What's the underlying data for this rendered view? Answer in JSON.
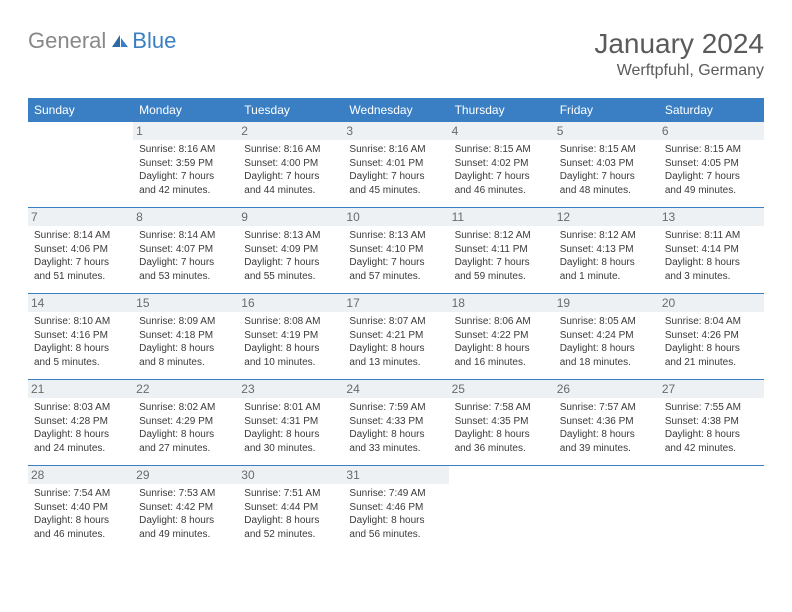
{
  "logo": {
    "text1": "General",
    "text2": "Blue"
  },
  "title": "January 2024",
  "location": "Werftpfuhl, Germany",
  "weekdays": [
    "Sunday",
    "Monday",
    "Tuesday",
    "Wednesday",
    "Thursday",
    "Friday",
    "Saturday"
  ],
  "colors": {
    "header_bg": "#3a7fc4",
    "header_text": "#ffffff",
    "border": "#3a7fc4",
    "daynum_bg": "#eef1f4",
    "text": "#3a3a3a",
    "logo_gray": "#888888",
    "logo_blue": "#3a7fc4"
  },
  "start_offset": 1,
  "days": [
    {
      "n": 1,
      "sr": "8:16 AM",
      "ss": "3:59 PM",
      "dl": "7 hours and 42 minutes."
    },
    {
      "n": 2,
      "sr": "8:16 AM",
      "ss": "4:00 PM",
      "dl": "7 hours and 44 minutes."
    },
    {
      "n": 3,
      "sr": "8:16 AM",
      "ss": "4:01 PM",
      "dl": "7 hours and 45 minutes."
    },
    {
      "n": 4,
      "sr": "8:15 AM",
      "ss": "4:02 PM",
      "dl": "7 hours and 46 minutes."
    },
    {
      "n": 5,
      "sr": "8:15 AM",
      "ss": "4:03 PM",
      "dl": "7 hours and 48 minutes."
    },
    {
      "n": 6,
      "sr": "8:15 AM",
      "ss": "4:05 PM",
      "dl": "7 hours and 49 minutes."
    },
    {
      "n": 7,
      "sr": "8:14 AM",
      "ss": "4:06 PM",
      "dl": "7 hours and 51 minutes."
    },
    {
      "n": 8,
      "sr": "8:14 AM",
      "ss": "4:07 PM",
      "dl": "7 hours and 53 minutes."
    },
    {
      "n": 9,
      "sr": "8:13 AM",
      "ss": "4:09 PM",
      "dl": "7 hours and 55 minutes."
    },
    {
      "n": 10,
      "sr": "8:13 AM",
      "ss": "4:10 PM",
      "dl": "7 hours and 57 minutes."
    },
    {
      "n": 11,
      "sr": "8:12 AM",
      "ss": "4:11 PM",
      "dl": "7 hours and 59 minutes."
    },
    {
      "n": 12,
      "sr": "8:12 AM",
      "ss": "4:13 PM",
      "dl": "8 hours and 1 minute."
    },
    {
      "n": 13,
      "sr": "8:11 AM",
      "ss": "4:14 PM",
      "dl": "8 hours and 3 minutes."
    },
    {
      "n": 14,
      "sr": "8:10 AM",
      "ss": "4:16 PM",
      "dl": "8 hours and 5 minutes."
    },
    {
      "n": 15,
      "sr": "8:09 AM",
      "ss": "4:18 PM",
      "dl": "8 hours and 8 minutes."
    },
    {
      "n": 16,
      "sr": "8:08 AM",
      "ss": "4:19 PM",
      "dl": "8 hours and 10 minutes."
    },
    {
      "n": 17,
      "sr": "8:07 AM",
      "ss": "4:21 PM",
      "dl": "8 hours and 13 minutes."
    },
    {
      "n": 18,
      "sr": "8:06 AM",
      "ss": "4:22 PM",
      "dl": "8 hours and 16 minutes."
    },
    {
      "n": 19,
      "sr": "8:05 AM",
      "ss": "4:24 PM",
      "dl": "8 hours and 18 minutes."
    },
    {
      "n": 20,
      "sr": "8:04 AM",
      "ss": "4:26 PM",
      "dl": "8 hours and 21 minutes."
    },
    {
      "n": 21,
      "sr": "8:03 AM",
      "ss": "4:28 PM",
      "dl": "8 hours and 24 minutes."
    },
    {
      "n": 22,
      "sr": "8:02 AM",
      "ss": "4:29 PM",
      "dl": "8 hours and 27 minutes."
    },
    {
      "n": 23,
      "sr": "8:01 AM",
      "ss": "4:31 PM",
      "dl": "8 hours and 30 minutes."
    },
    {
      "n": 24,
      "sr": "7:59 AM",
      "ss": "4:33 PM",
      "dl": "8 hours and 33 minutes."
    },
    {
      "n": 25,
      "sr": "7:58 AM",
      "ss": "4:35 PM",
      "dl": "8 hours and 36 minutes."
    },
    {
      "n": 26,
      "sr": "7:57 AM",
      "ss": "4:36 PM",
      "dl": "8 hours and 39 minutes."
    },
    {
      "n": 27,
      "sr": "7:55 AM",
      "ss": "4:38 PM",
      "dl": "8 hours and 42 minutes."
    },
    {
      "n": 28,
      "sr": "7:54 AM",
      "ss": "4:40 PM",
      "dl": "8 hours and 46 minutes."
    },
    {
      "n": 29,
      "sr": "7:53 AM",
      "ss": "4:42 PM",
      "dl": "8 hours and 49 minutes."
    },
    {
      "n": 30,
      "sr": "7:51 AM",
      "ss": "4:44 PM",
      "dl": "8 hours and 52 minutes."
    },
    {
      "n": 31,
      "sr": "7:49 AM",
      "ss": "4:46 PM",
      "dl": "8 hours and 56 minutes."
    }
  ],
  "labels": {
    "sunrise": "Sunrise:",
    "sunset": "Sunset:",
    "daylight": "Daylight:"
  }
}
